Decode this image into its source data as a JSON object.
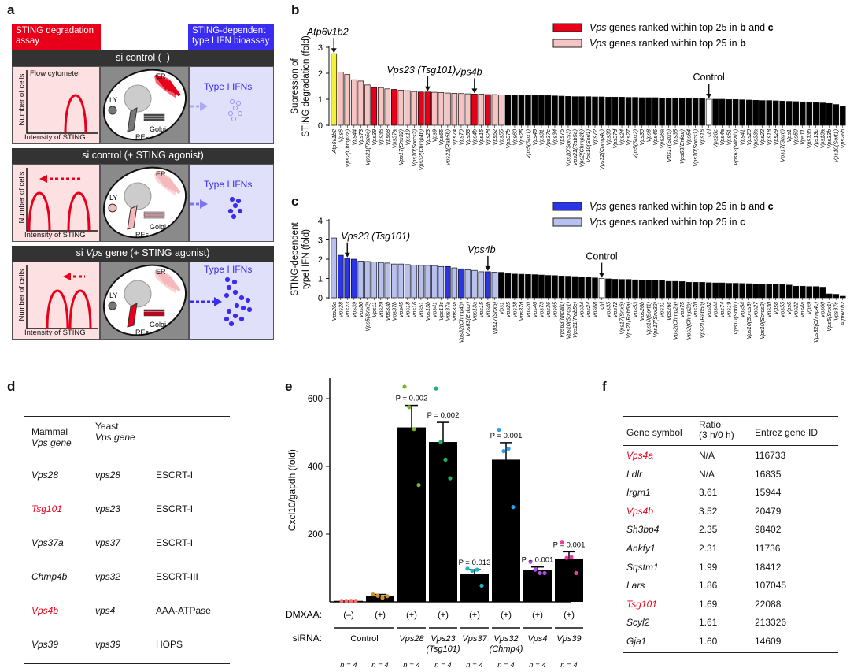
{
  "panel_labels": {
    "a": "a",
    "b": "b",
    "c": "c",
    "d": "d",
    "e": "e",
    "f": "f"
  },
  "panel_a": {
    "header_left": "STING degradation assay",
    "header_right": "STING-dependent type I IFN bioassay",
    "colors": {
      "red": "#e8001a",
      "blue": "#3a2cf0",
      "pink_bg": "#fde0e2",
      "lavender_bg": "#e0e0fb"
    },
    "rows": [
      {
        "title_pre": "si control (–)",
        "title_it": "",
        "title_post": "",
        "flow_label": "Flow cytometer",
        "ylabel": "Number of cells",
        "xlabel": "Intensity of STING",
        "ifn": "Type I IFNs"
      },
      {
        "title_pre": "si control (+ STING agonist)",
        "title_it": "",
        "title_post": "",
        "flow_label": "",
        "ylabel": "Number of cells",
        "xlabel": "Intensity of STING",
        "ifn": "Type I IFNs"
      },
      {
        "title_pre": "si ",
        "title_it": "Vps",
        "title_post": " gene (+ STING agonist)",
        "flow_label": "",
        "ylabel": "Number of cells",
        "xlabel": "Intensity of STING",
        "ifn": "Type I IFNs"
      }
    ],
    "cell_labels": {
      "er": "ER",
      "ly": "LY",
      "golgi": "Golgi",
      "res": "REs"
    }
  },
  "chart_data": [
    {
      "type": "bar",
      "panel": "b",
      "ylabel": "Supression of STING degradation (fold)",
      "ylim": [
        0,
        3
      ],
      "yticks": [
        0,
        1,
        2,
        3
      ],
      "legend": [
        {
          "pre": "Vps",
          "text": " genes ranked within top 25 in ",
          "b1": "b",
          "mid": " and ",
          "b2": "c",
          "color": "#e8001a"
        },
        {
          "pre": "Vps",
          "text": " genes ranked within top 25 in ",
          "b1": "b",
          "mid": "",
          "b2": "",
          "color": "#f7c4c4"
        }
      ],
      "annotations": [
        {
          "text": "Atp6v1b2",
          "index": 0
        },
        {
          "text": "Vps23 (Tsg101)",
          "index": 14
        },
        {
          "text": "Vps4b",
          "index": 21
        },
        {
          "text": "Control",
          "index": 56
        }
      ],
      "colors": {
        "pos": "#f2f23a",
        "bc": "#e8001a",
        "top": "#f7c4c4",
        "none": "#000000",
        "ctrl": "#ffffff"
      },
      "categories": [
        "Atp6v1b2",
        "Vps6",
        "Vps2(Chmp2a)",
        "Vps44",
        "Vps73",
        "Vps21(Rab5c)",
        "Vps39",
        "Vps36",
        "Vps68",
        "Vps37a",
        "Vps17(Snx32)",
        "Vps19",
        "Vps10(Sorcs2)",
        "Vps32(Chmp4b)",
        "Vps23",
        "Vps9",
        "Vps65",
        "Vps21(Rab5b)",
        "Vps74",
        "Vps70",
        "Vps53",
        "Vps4b",
        "Vps15",
        "Vps28",
        "Vps52",
        "Vps55",
        "Vps37b",
        "Vps60",
        "Vps25",
        "Vps5(Snx1)",
        "Vps45",
        "Vps31",
        "Vps37c",
        "Vps34",
        "Vps75",
        "Vps10(Sorcs3)",
        "Vps21(Rab5a)",
        "Vps2(Chmp2b)",
        "Vps10(Sorl1)",
        "Vps72",
        "Vps32(Chmp4c)",
        "Vps38",
        "Vps37d",
        "Vps24",
        "Vps27",
        "Vps5(Snx2)",
        "Vps30",
        "Vps8",
        "Vps46",
        "Vps26a",
        "Vps17(Snx5)",
        "Vps35",
        "Vps63(Enkur)",
        "Vps54",
        "Vps10(Sorcs1)",
        "Vps16",
        "ctrl",
        "Vps26c",
        "Vps4a",
        "Vps51",
        "Vps63(Mical1)",
        "Vps41",
        "Vps20",
        "Vps33a",
        "Vps22",
        "Vps18",
        "Vps29",
        "Vps17(Snx6)",
        "Vps1",
        "Vps50",
        "Vps11",
        "Vps13b",
        "Vps13c",
        "Vps13a",
        "Vps33b",
        "Vps10(Sort1)",
        "Vps26b"
      ],
      "values": [
        2.75,
        2.05,
        1.95,
        1.75,
        1.7,
        1.55,
        1.45,
        1.45,
        1.4,
        1.38,
        1.35,
        1.33,
        1.3,
        1.28,
        1.28,
        1.27,
        1.26,
        1.24,
        1.23,
        1.22,
        1.21,
        1.2,
        1.2,
        1.18,
        1.18,
        1.17,
        1.16,
        1.15,
        1.15,
        1.15,
        1.15,
        1.15,
        1.14,
        1.13,
        1.12,
        1.11,
        1.1,
        1.1,
        1.1,
        1.09,
        1.09,
        1.08,
        1.08,
        1.08,
        1.07,
        1.07,
        1.06,
        1.06,
        1.06,
        1.05,
        1.05,
        1.04,
        1.03,
        1.03,
        1.03,
        1.02,
        1.0,
        1.0,
        1.0,
        0.99,
        0.99,
        0.98,
        0.97,
        0.96,
        0.95,
        0.95,
        0.94,
        0.93,
        0.92,
        0.91,
        0.9,
        0.88,
        0.87,
        0.86,
        0.84,
        0.8,
        0.73
      ],
      "groups": [
        "pos",
        "top",
        "top",
        "top",
        "top",
        "top",
        "bc",
        "top",
        "top",
        "bc",
        "top",
        "top",
        "top",
        "bc",
        "bc",
        "top",
        "top",
        "top",
        "top",
        "top",
        "top",
        "bc",
        "top",
        "bc",
        "top",
        "top",
        "none",
        "none",
        "none",
        "none",
        "none",
        "none",
        "none",
        "none",
        "none",
        "none",
        "none",
        "none",
        "none",
        "none",
        "none",
        "none",
        "none",
        "none",
        "none",
        "none",
        "none",
        "none",
        "none",
        "none",
        "none",
        "none",
        "none",
        "none",
        "none",
        "none",
        "ctrl",
        "none",
        "none",
        "none",
        "none",
        "none",
        "none",
        "none",
        "none",
        "none",
        "none",
        "none",
        "none",
        "none",
        "none",
        "none",
        "none",
        "none",
        "none",
        "none",
        "none"
      ]
    },
    {
      "type": "bar",
      "panel": "c",
      "ylabel": "STING-dependent typeI IFN (fold)",
      "ylim": [
        0,
        4
      ],
      "yticks": [
        0,
        1,
        2,
        3,
        4
      ],
      "legend": [
        {
          "pre": "Vps",
          "text": " genes ranked within top 25 in ",
          "b1": "b",
          "mid": " and ",
          "b2": "c",
          "color": "#2b35e6"
        },
        {
          "pre": "Vps",
          "text": " genes ranked within top 25 in ",
          "b1": "c",
          "mid": "",
          "b2": "",
          "color": "#b8c0f0"
        }
      ],
      "annotations": [
        {
          "text": "Vps23 (Tsg101)",
          "index": 2
        },
        {
          "text": "Vps4b",
          "index": 23
        },
        {
          "text": "Control",
          "index": 40
        }
      ],
      "colors": {
        "bc": "#2b35e6",
        "top": "#b8c0f0",
        "none": "#000000",
        "ctrl": "#ffffff"
      },
      "categories": [
        "Vps26a",
        "Vps28",
        "Vps23",
        "Vps39",
        "Vps50",
        "Vps5(Snx2)",
        "Vps11",
        "Vps29",
        "Vps33b",
        "Vps37b",
        "Vps45",
        "Vps18",
        "Vps16",
        "Vps51",
        "Vps13b",
        "Vps41",
        "Vps13c",
        "Vps37a",
        "Vps33a",
        "Vps32(Chmp4b)",
        "Vps63(Enkur)",
        "Vps13a",
        "Vps15",
        "Vps4b",
        "Vps17(Snx5)",
        "Vps1",
        "Vps25",
        "Vps38",
        "Vps37d",
        "Vps20",
        "Vps46",
        "Vps73",
        "Vps36",
        "Vps65",
        "Vps63(Mical1)",
        "Vps10(Sorcs1)",
        "Vps21(Rab5c)",
        "Vps34",
        "Vps24",
        "Vps68",
        "ctrl",
        "Vps35",
        "Vps72",
        "Vps17(Snx6)",
        "Vps21(Rab5a)",
        "Vps53",
        "Vps26b",
        "Vps10(Sort1)",
        "Vps17(Snx32)",
        "Vps31",
        "Vps26c",
        "Vps2(Chmp2a)",
        "Vps75",
        "Vps2(Chmp2b)",
        "Vps70",
        "Vps21(Rab5b)",
        "Vps52",
        "Vps44",
        "Vps74",
        "Vps19",
        "Vps10(Sorl1)",
        "Vps54",
        "Vps10(Sorcs3)",
        "Vps27",
        "Vps10(Sorcs2)",
        "Vps30",
        "Vps8",
        "Vps55",
        "Vps6",
        "Vps22",
        "Vps4a",
        "Vps9",
        "Vps32(Chmp4c)",
        "Vps60",
        "Vps5(Snx1)",
        "Vps37c",
        "Atp6v1b2"
      ],
      "values": [
        3.1,
        2.2,
        2.05,
        2.0,
        1.9,
        1.88,
        1.85,
        1.83,
        1.8,
        1.75,
        1.75,
        1.72,
        1.7,
        1.68,
        1.68,
        1.67,
        1.62,
        1.62,
        1.55,
        1.5,
        1.45,
        1.42,
        1.35,
        1.35,
        1.33,
        1.32,
        1.25,
        1.23,
        1.22,
        1.21,
        1.2,
        1.18,
        1.16,
        1.15,
        1.13,
        1.12,
        1.1,
        1.08,
        1.07,
        1.03,
        1.0,
        0.98,
        0.96,
        0.95,
        0.95,
        0.93,
        0.92,
        0.92,
        0.92,
        0.9,
        0.85,
        0.85,
        0.84,
        0.8,
        0.8,
        0.8,
        0.78,
        0.77,
        0.77,
        0.75,
        0.75,
        0.74,
        0.73,
        0.72,
        0.72,
        0.71,
        0.7,
        0.69,
        0.66,
        0.6,
        0.6,
        0.58,
        0.58,
        0.55,
        0.2,
        0.18,
        0.08
      ],
      "groups": [
        "top",
        "bc",
        "bc",
        "bc",
        "top",
        "top",
        "top",
        "top",
        "top",
        "top",
        "top",
        "top",
        "top",
        "top",
        "top",
        "top",
        "top",
        "bc",
        "top",
        "bc",
        "top",
        "top",
        "top",
        "bc",
        "top",
        "none",
        "none",
        "none",
        "none",
        "none",
        "none",
        "none",
        "none",
        "none",
        "none",
        "none",
        "none",
        "none",
        "none",
        "none",
        "ctrl",
        "none",
        "none",
        "none",
        "none",
        "none",
        "none",
        "none",
        "none",
        "none",
        "none",
        "none",
        "none",
        "none",
        "none",
        "none",
        "none",
        "none",
        "none",
        "none",
        "none",
        "none",
        "none",
        "none",
        "none",
        "none",
        "none",
        "none",
        "none",
        "none",
        "none",
        "none",
        "none",
        "none",
        "none",
        "none",
        "none"
      ]
    },
    {
      "type": "bar",
      "panel": "e",
      "ylabel": "Cxcl10/gapdh (fold)",
      "ylim": [
        0,
        660
      ],
      "yticks": [
        200,
        400,
        600
      ],
      "row_labels": {
        "dmxaa": "DMXAA:",
        "sirna": "siRNA:"
      },
      "dmxaa": [
        "(–)",
        "(+)",
        "(+)",
        "(+)",
        "(+)",
        "(+)",
        "(+)",
        "(+)"
      ],
      "sirna_groups": [
        {
          "name": "Control",
          "sub": "",
          "span": 2,
          "italic": false
        },
        {
          "name": "Vps28",
          "sub": "",
          "span": 1,
          "italic": true
        },
        {
          "name": "Vps23",
          "sub": "(Tsg101)",
          "span": 1,
          "italic": true
        },
        {
          "name": "Vps37",
          "sub": "",
          "span": 1,
          "italic": true
        },
        {
          "name": "Vps32",
          "sub": "(Chmp4)",
          "span": 1,
          "italic": true
        },
        {
          "name": "Vps4",
          "sub": "",
          "span": 1,
          "italic": true
        },
        {
          "name": "Vps39",
          "sub": "",
          "span": 1,
          "italic": true
        }
      ],
      "n": [
        "n = 4",
        "n = 4",
        "n = 4",
        "n = 4",
        "n = 4",
        "n = 4",
        "n = 4",
        "n = 4"
      ],
      "values": [
        3,
        18,
        515,
        472,
        82,
        420,
        95,
        128
      ],
      "error_upper": [
        3,
        22,
        580,
        530,
        95,
        470,
        103,
        148
      ],
      "p_values": [
        "",
        "",
        "P = 0.002",
        "P = 0.002",
        "P = 0.013",
        "P = 0.001",
        "P = 0.001",
        "P = 0.001"
      ],
      "points": [
        [
          3,
          3,
          3,
          3
        ],
        [
          22,
          18,
          12,
          17
        ],
        [
          635,
          575,
          510,
          345
        ],
        [
          630,
          472,
          420,
          365
        ],
        [
          98,
          92,
          95,
          48
        ],
        [
          508,
          445,
          452,
          280
        ],
        [
          118,
          95,
          85,
          85
        ],
        [
          175,
          130,
          132,
          85
        ]
      ],
      "point_colors": [
        "#ff6b6b",
        "#d4932a",
        "#7ab32e",
        "#1db36a",
        "#18b8c8",
        "#2a9df4",
        "#b04ee0",
        "#f03ca0"
      ]
    }
  ],
  "panel_d": {
    "headers": [
      [
        "Mammal",
        "Vps gene"
      ],
      [
        "Yeast",
        "Vps gene"
      ],
      [
        ""
      ]
    ],
    "rows": [
      {
        "mammal": "Vps28",
        "yeast": "vps28",
        "complex": "ESCRT-I",
        "red": false
      },
      {
        "mammal": "Tsg101",
        "yeast": "vps23",
        "complex": "ESCRT-I",
        "red": true
      },
      {
        "mammal": "Vps37a",
        "yeast": "vps37",
        "complex": "ESCRT-I",
        "red": false
      },
      {
        "mammal": "Chmp4b",
        "yeast": "vps32",
        "complex": "ESCRT-III",
        "red": false
      },
      {
        "mammal": "Vps4b",
        "yeast": "vps4",
        "complex": "AAA-ATPase",
        "red": true
      },
      {
        "mammal": "Vps39",
        "yeast": "vps39",
        "complex": "HOPS",
        "red": false
      }
    ]
  },
  "panel_f": {
    "headers": [
      "Gene symbol",
      "Ratio",
      "(3 h/0 h)",
      "Entrez gene ID"
    ],
    "rows": [
      {
        "gene": "Vps4a",
        "ratio": "N/A",
        "id": "116733",
        "red": true
      },
      {
        "gene": "Ldlr",
        "ratio": "N/A",
        "id": "16835",
        "red": false
      },
      {
        "gene": "Irgm1",
        "ratio": "3.61",
        "id": "15944",
        "red": false
      },
      {
        "gene": "Vps4b",
        "ratio": "3.52",
        "id": "20479",
        "red": true
      },
      {
        "gene": "Sh3bp4",
        "ratio": "2.35",
        "id": "98402",
        "red": false
      },
      {
        "gene": "Ankfy1",
        "ratio": "2.31",
        "id": "11736",
        "red": false
      },
      {
        "gene": "Sqstm1",
        "ratio": "1.99",
        "id": "18412",
        "red": false
      },
      {
        "gene": "Lars",
        "ratio": "1.86",
        "id": "107045",
        "red": false
      },
      {
        "gene": "Tsg101",
        "ratio": "1.69",
        "id": "22088",
        "red": true
      },
      {
        "gene": "Scyl2",
        "ratio": "1.61",
        "id": "213326",
        "red": false
      },
      {
        "gene": "Gja1",
        "ratio": "1.60",
        "id": "14609",
        "red": false
      }
    ]
  }
}
